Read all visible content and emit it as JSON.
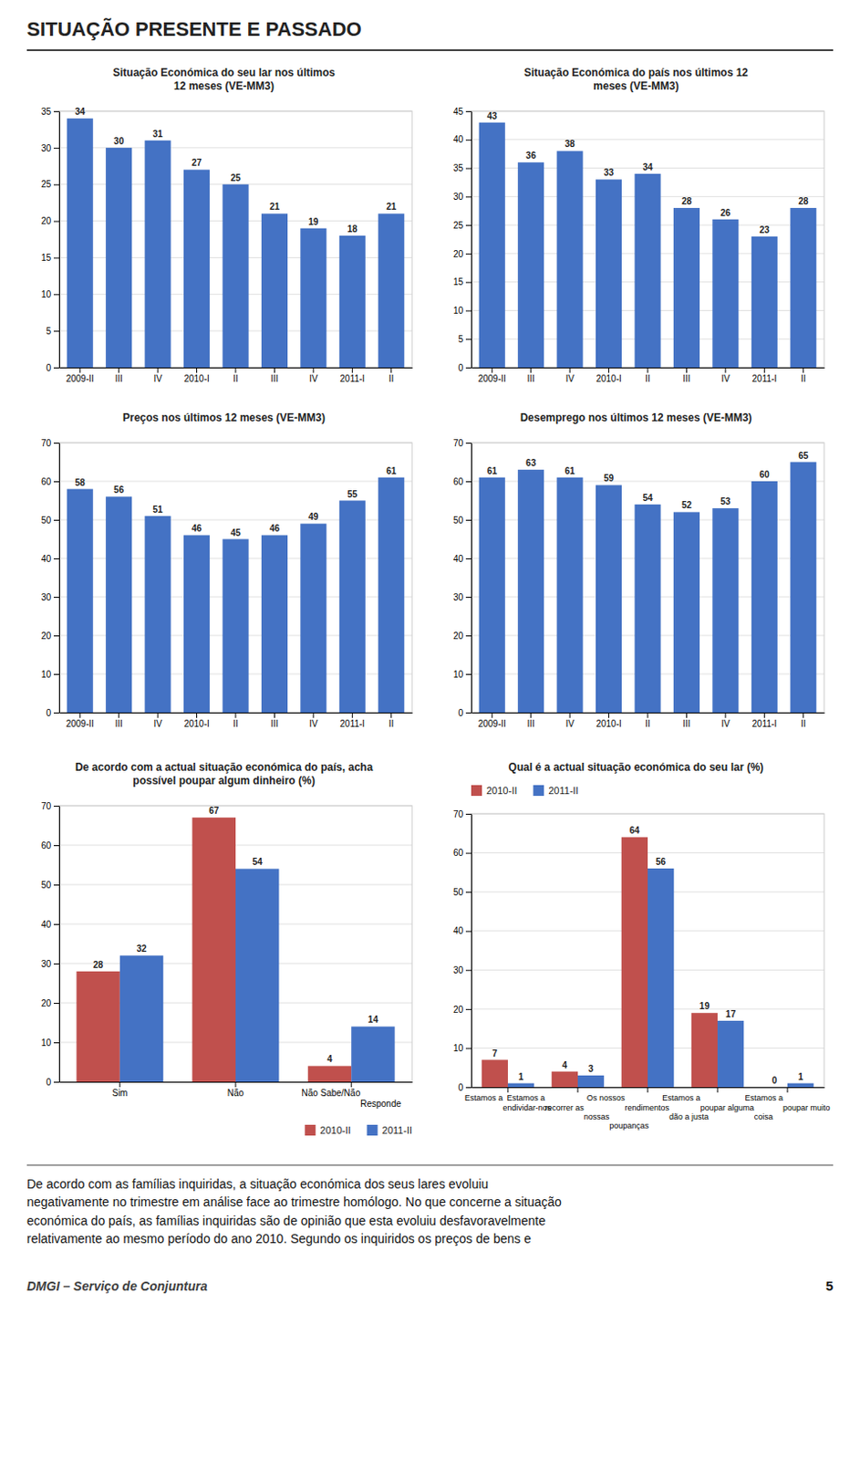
{
  "title": "SITUAÇÃO PRESENTE E PASSADO",
  "chart_data": [
    {
      "type": "bar",
      "title": "Situação Económica do seu lar nos últimos\n12 meses (VE-MM3)",
      "categories": [
        "2009-II",
        "III",
        "IV",
        "2010-I",
        "II",
        "III",
        "IV",
        "2011-I",
        "II"
      ],
      "values": [
        34,
        30,
        31,
        27,
        25,
        21,
        19,
        18,
        21
      ],
      "color": "#4472C4",
      "ylim": [
        0,
        35
      ],
      "yticks": [
        0,
        5,
        10,
        15,
        20,
        25,
        30,
        35
      ],
      "grid": true,
      "data_labels": true
    },
    {
      "type": "bar",
      "title": "Situação Económica do país nos últimos 12\nmeses (VE-MM3)",
      "categories": [
        "2009-II",
        "III",
        "IV",
        "2010-I",
        "II",
        "III",
        "IV",
        "2011-I",
        "II"
      ],
      "values": [
        43,
        36,
        38,
        33,
        34,
        28,
        26,
        23,
        28
      ],
      "color": "#4472C4",
      "ylim": [
        0,
        45
      ],
      "yticks": [
        0,
        5,
        10,
        15,
        20,
        25,
        30,
        35,
        40,
        45
      ],
      "grid": true,
      "data_labels": true
    },
    {
      "type": "bar",
      "title": "Preços nos últimos 12 meses (VE-MM3)",
      "categories": [
        "2009-II",
        "III",
        "IV",
        "2010-I",
        "II",
        "III",
        "IV",
        "2011-I",
        "II"
      ],
      "values": [
        58,
        56,
        51,
        46,
        45,
        46,
        49,
        55,
        61
      ],
      "color": "#4472C4",
      "ylim": [
        0,
        70
      ],
      "yticks": [
        0,
        10,
        20,
        30,
        40,
        50,
        60,
        70
      ],
      "grid": true,
      "data_labels": true
    },
    {
      "type": "bar",
      "title": "Desemprego nos últimos 12 meses (VE-MM3)",
      "categories": [
        "2009-II",
        "III",
        "IV",
        "2010-I",
        "II",
        "III",
        "IV",
        "2011-I",
        "II"
      ],
      "values": [
        61,
        63,
        61,
        59,
        54,
        52,
        53,
        60,
        65
      ],
      "color": "#4472C4",
      "ylim": [
        0,
        70
      ],
      "yticks": [
        0,
        10,
        20,
        30,
        40,
        50,
        60,
        70
      ],
      "grid": true,
      "data_labels": true
    },
    {
      "type": "bar",
      "title": "De acordo com a actual situação económica do país, acha\npossível poupar algum dinheiro (%)",
      "categories": [
        "Sim",
        "Não",
        "Não Sabe/Não\nResponde"
      ],
      "series": [
        {
          "name": "2010-II",
          "color": "#C0504D",
          "values": [
            28,
            67,
            4
          ]
        },
        {
          "name": "2011-II",
          "color": "#4472C4",
          "values": [
            32,
            54,
            14
          ]
        }
      ],
      "ylim": [
        0,
        70
      ],
      "yticks": [
        0,
        10,
        20,
        30,
        40,
        50,
        60,
        70
      ],
      "grid": true,
      "legend": "lower right",
      "data_labels": true
    },
    {
      "type": "bar",
      "title": "Qual é a actual situação económica do seu lar (%)",
      "categories": [
        "Estamos a\nendividar-nos",
        "Estamos a\nrecorrer as\nnossas\npoupanças",
        "Os nossos\nrendimentos\ndão a justa",
        "Estamos a\npoupar alguma\ncoisa",
        "Estamos a\npoupar muito"
      ],
      "series": [
        {
          "name": "2010-II",
          "color": "#C0504D",
          "values": [
            7,
            4,
            64,
            19,
            0
          ]
        },
        {
          "name": "2011-II",
          "color": "#4472C4",
          "values": [
            1,
            3,
            56,
            17,
            1
          ]
        }
      ],
      "ylim": [
        0,
        70
      ],
      "yticks": [
        0,
        10,
        20,
        30,
        40,
        50,
        60,
        70
      ],
      "grid": true,
      "legend": "upper left",
      "data_labels": true
    }
  ],
  "annotations": [
    "De acordo com as famílias inquiridas, a situação económica dos seus lares evoluiu\nnegativamente no trimestre em análise face ao trimestre homólogo. No que concerne a situação\neconómica do país, as famílias inquiridas são de opinião que esta evoluiu desfavoravelmente\nrelativamente ao mesmo período do ano 2010. Segundo os inquiridos os preços de bens e",
    "DMGI – Serviço de Conjuntura",
    "5"
  ]
}
